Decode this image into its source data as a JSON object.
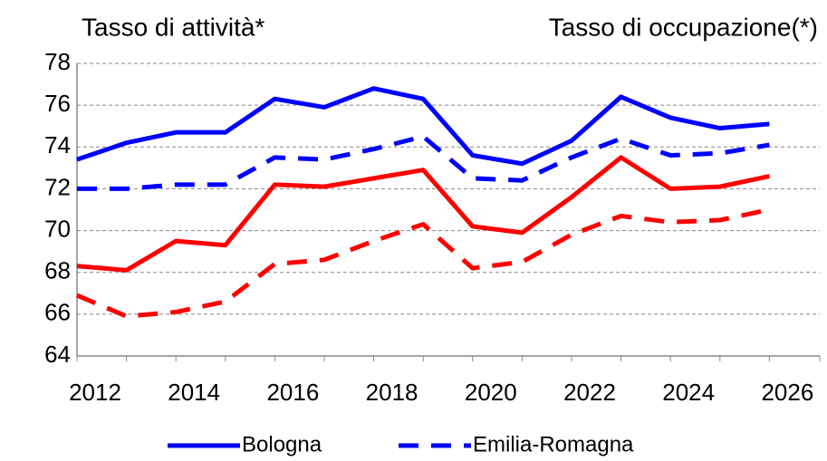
{
  "chart_data": {
    "type": "line",
    "annotations": [
      {
        "text": "Tasso di attività*",
        "color": "#0000ff"
      },
      {
        "text": "Tasso di occupazione(*)",
        "color": "#ff0000"
      }
    ],
    "categories": [
      "2012",
      null,
      "2014",
      null,
      "2016",
      null,
      "2018",
      null,
      "2020",
      null,
      "2022",
      null,
      "2024",
      null,
      "2026"
    ],
    "series": [
      {
        "name": "Bologna",
        "color": "#0000ff",
        "dash": false,
        "values": [
          73.4,
          74.2,
          74.7,
          74.7,
          76.3,
          75.9,
          76.8,
          76.3,
          73.6,
          73.2,
          74.3,
          76.4,
          75.4,
          74.9,
          75.1
        ]
      },
      {
        "name": "Emilia-Romagna",
        "color": "#0000ff",
        "dash": true,
        "values": [
          72.0,
          72.0,
          72.2,
          72.2,
          73.5,
          73.4,
          73.9,
          74.5,
          72.5,
          72.4,
          73.5,
          74.4,
          73.6,
          73.7,
          74.1
        ]
      },
      {
        "color": "#ff0000",
        "dash": false,
        "values": [
          68.3,
          68.1,
          69.5,
          69.3,
          72.2,
          72.1,
          72.5,
          72.9,
          70.2,
          69.9,
          71.6,
          73.5,
          72.0,
          72.1,
          72.6
        ]
      },
      {
        "color": "#ff0000",
        "dash": true,
        "values": [
          66.9,
          65.9,
          66.1,
          66.6,
          68.4,
          68.6,
          69.5,
          70.3,
          68.2,
          68.5,
          69.8,
          70.7,
          70.4,
          70.5,
          71.0
        ]
      }
    ],
    "ylim": [
      64,
      78
    ],
    "yticks": [
      64,
      66,
      68,
      70,
      72,
      74,
      76,
      78
    ],
    "grid": true
  }
}
